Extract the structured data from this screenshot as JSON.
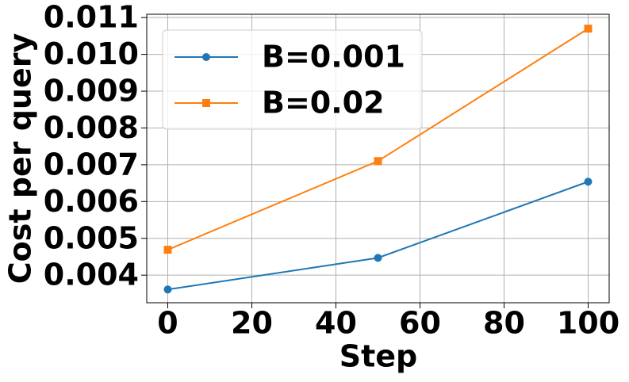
{
  "chart_data": {
    "type": "line",
    "xlabel": "Step",
    "ylabel": "Cost per query",
    "x": [
      0,
      50,
      100
    ],
    "series": [
      {
        "name": "B=0.001",
        "color": "#1f77b4",
        "marker": "circle",
        "values": [
          0.00361,
          0.00447,
          0.00654
        ]
      },
      {
        "name": "B=0.02",
        "color": "#ff7f0e",
        "marker": "square",
        "values": [
          0.00469,
          0.0071,
          0.0107
        ]
      }
    ],
    "xlim": [
      -5,
      105
    ],
    "xticks": [
      0,
      20,
      40,
      60,
      80,
      100
    ],
    "ylim": [
      0.00325,
      0.01109
    ],
    "yticks": [
      0.004,
      0.005,
      0.006,
      0.007,
      0.008,
      0.009,
      {
        "value": 0.01,
        "label": "0.010"
      },
      0.011
    ],
    "grid": true,
    "legend": "upper left"
  }
}
